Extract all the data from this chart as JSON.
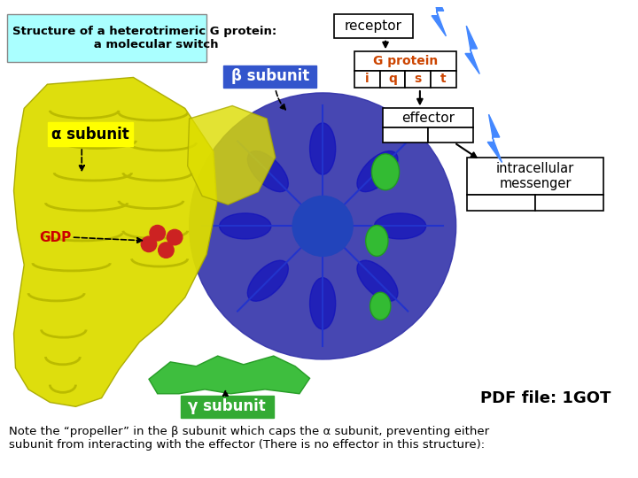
{
  "title_text": "Structure of a heterotrimeric G protein:\n      a molecular switch",
  "title_bg": "#aaffff",
  "bg_color": "#ffffff",
  "receptor_label": "receptor",
  "g_protein_label": "G protein",
  "g_protein_color": "#cc4400",
  "g_protein_subunits": [
    "i",
    "q",
    "s",
    "t"
  ],
  "g_protein_subunit_color": "#cc4400",
  "effector_label": "effector",
  "intracellular_label": "intracellular\nmessenger",
  "beta_label": "β subunit",
  "beta_bg": "#3355cc",
  "beta_text_color": "#ffffff",
  "alpha_label": "α subunit",
  "alpha_bg": "#ffff00",
  "alpha_text_color": "#000000",
  "gamma_label": "γ subunit",
  "gamma_bg": "#33aa33",
  "gamma_text_color": "#ffffff",
  "gdp_label": "GDP",
  "gdp_color": "#cc0000",
  "pdf_label": "PDF file: 1GOT",
  "note_text": "Note the “propeller” in the β subunit which caps the α subunit, preventing either\nsubunit from interacting with the effector (There is no effector in this structure):",
  "lightning_color": "#4488ff",
  "arrow_color": "#000000",
  "blue_beta_color": "#3333aa",
  "blue_beta_dark": "#1111bb",
  "yellow_alpha_color": "#dddd00",
  "yellow_alpha_edge": "#aaaa00",
  "green_gamma_color": "#33bb33",
  "green_gamma_edge": "#229922",
  "gdp_sphere_color": "#cc2222",
  "helix_color": "#bbbb00"
}
